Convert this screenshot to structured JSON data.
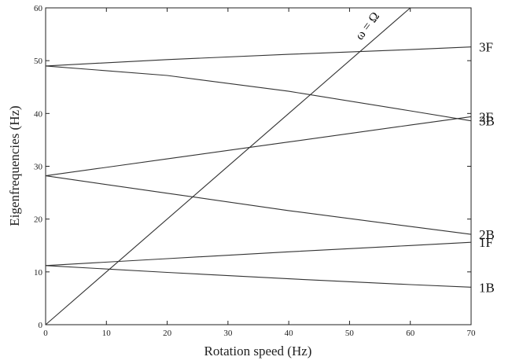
{
  "chart_data": {
    "type": "line",
    "title": "",
    "xlabel": "Rotation speed (Hz)",
    "ylabel": "Eigenfrequencies (Hz)",
    "xlim": [
      0,
      70
    ],
    "ylim": [
      0,
      60
    ],
    "xticks": [
      0,
      10,
      20,
      30,
      40,
      50,
      60,
      70
    ],
    "yticks": [
      0,
      10,
      20,
      30,
      40,
      50,
      60
    ],
    "grid": false,
    "series": [
      {
        "name": "3F",
        "x": [
          0,
          20,
          40,
          60,
          70
        ],
        "y": [
          49,
          50.2,
          51.2,
          52.1,
          52.6
        ]
      },
      {
        "name": "3B",
        "x": [
          0,
          20,
          40,
          60,
          70
        ],
        "y": [
          49,
          47.2,
          44.2,
          40.5,
          38.6
        ]
      },
      {
        "name": "2F",
        "x": [
          0,
          20,
          40,
          60,
          70
        ],
        "y": [
          28.2,
          31.4,
          34.6,
          37.8,
          39.4
        ]
      },
      {
        "name": "2B",
        "x": [
          0,
          20,
          40,
          60,
          70
        ],
        "y": [
          28.2,
          24.9,
          21.6,
          18.6,
          17.1
        ]
      },
      {
        "name": "1F",
        "x": [
          0,
          20,
          40,
          60,
          70
        ],
        "y": [
          11.2,
          12.5,
          13.8,
          15.0,
          15.6
        ]
      },
      {
        "name": "1B",
        "x": [
          0,
          20,
          40,
          60,
          70
        ],
        "y": [
          11.2,
          9.9,
          8.7,
          7.6,
          7.1
        ]
      },
      {
        "name": "ω = Ω",
        "x": [
          0,
          60
        ],
        "y": [
          0,
          60
        ]
      }
    ],
    "annotation": "ω = Ω"
  }
}
